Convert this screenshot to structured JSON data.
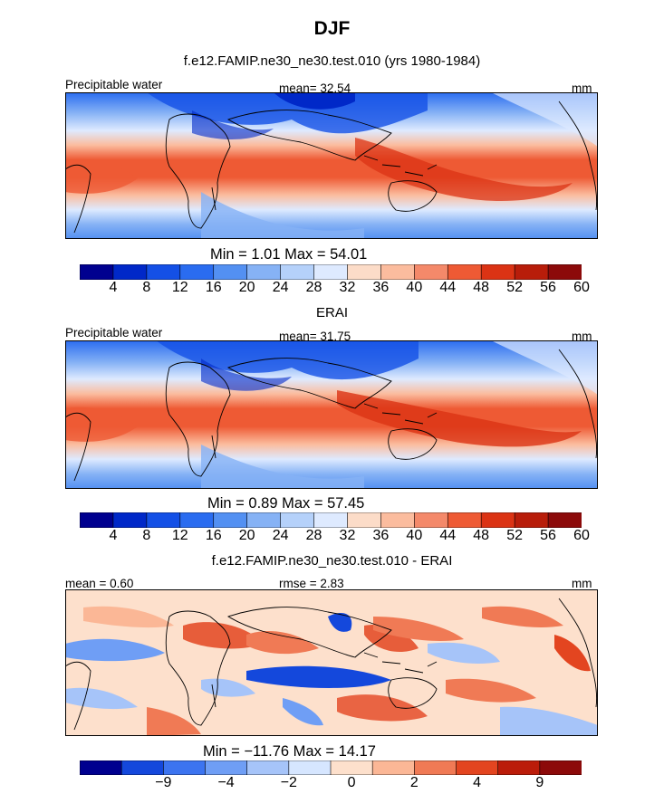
{
  "title": "DJF",
  "panels": [
    {
      "subtitle": "f.e12.FAMIP.ne30_ne30.test.010 (yrs 1980-1984)",
      "left_label": "Precipitable water",
      "center_label": "mean=  32.54",
      "unit": "mm",
      "stats": "Min =    1.01  Max =   54.01",
      "ticks": [
        "4",
        "8",
        "12",
        "16",
        "20",
        "24",
        "28",
        "32",
        "36",
        "40",
        "44",
        "48",
        "52",
        "56",
        "60"
      ],
      "map_kind": "model"
    },
    {
      "subtitle": "ERAI",
      "left_label": "Precipitable water",
      "center_label": "mean=  31.75",
      "unit": "mm",
      "stats": "Min =    0.89  Max =   57.45",
      "ticks": [
        "4",
        "8",
        "12",
        "16",
        "20",
        "24",
        "28",
        "32",
        "36",
        "40",
        "44",
        "48",
        "52",
        "56",
        "60"
      ],
      "map_kind": "obs"
    },
    {
      "subtitle": "f.e12.FAMIP.ne30_ne30.test.010 - ERAI",
      "left_label": "mean =     0.60",
      "center_label": "rmse =     2.83",
      "unit": "mm",
      "stats": "Min = −11.76  Max =   14.17",
      "ticks": [
        "−9",
        "−4",
        "−2",
        "0",
        "2",
        "4",
        "9"
      ],
      "map_kind": "diff"
    }
  ],
  "colors": {
    "full_scale": [
      "#00008f",
      "#0028c8",
      "#1450e6",
      "#2a6cf0",
      "#5390f2",
      "#86b2f5",
      "#b5d1fa",
      "#deeaff",
      "#fcdcc8",
      "#fbbc9e",
      "#f4896a",
      "#ee5a34",
      "#db3314",
      "#b81d0a",
      "#8c0a0a"
    ],
    "diff_scale": [
      "#00008f",
      "#1448dc",
      "#3c74f0",
      "#6f9ef5",
      "#a6c4f9",
      "#d6e6ff",
      "#fde0cc",
      "#fbb796",
      "#f07a55",
      "#e34520",
      "#bb1c0a",
      "#8c0a0a"
    ]
  }
}
